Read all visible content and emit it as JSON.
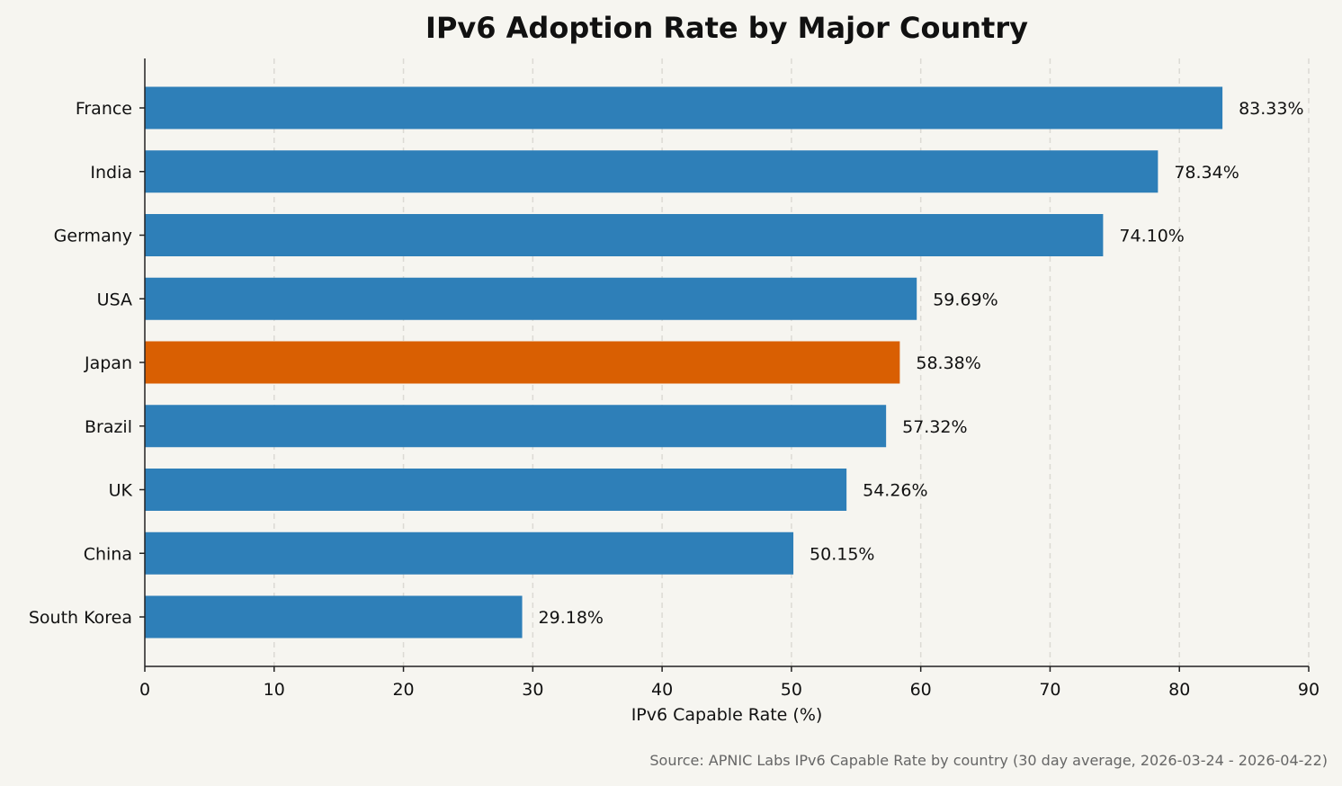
{
  "chart_data": {
    "type": "bar",
    "orientation": "horizontal",
    "title": "IPv6 Adoption Rate by Major Country",
    "xlabel": "IPv6 Capable Rate (%)",
    "ylabel": "",
    "xlim": [
      0,
      90
    ],
    "xticks": [
      0,
      10,
      20,
      30,
      40,
      50,
      60,
      70,
      80,
      90
    ],
    "grid": "vertical dashed",
    "categories": [
      "France",
      "India",
      "Germany",
      "USA",
      "Japan",
      "Brazil",
      "UK",
      "China",
      "South Korea"
    ],
    "values": [
      83.33,
      78.34,
      74.1,
      59.69,
      58.38,
      57.32,
      54.26,
      50.15,
      29.18
    ],
    "data_labels": [
      "83.33%",
      "78.34%",
      "74.10%",
      "59.69%",
      "58.38%",
      "57.32%",
      "54.26%",
      "50.15%",
      "29.18%"
    ],
    "highlight": "Japan",
    "colors": {
      "default": "#2e7fb8",
      "highlight": "#d95f02",
      "background": "#f6f5f0"
    },
    "source": "Source: APNIC Labs IPv6 Capable Rate by country (30 day average, 2026-03-24 - 2026-04-22)"
  }
}
